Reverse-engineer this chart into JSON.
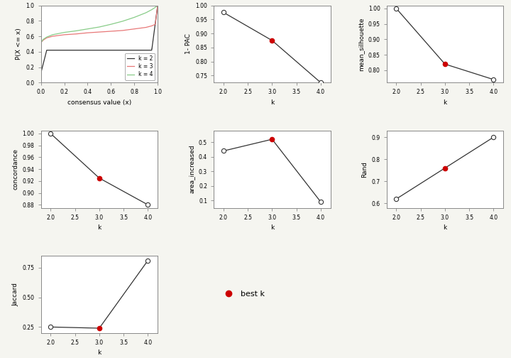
{
  "ecdf_k2": {
    "x": [
      0.0,
      0.0001,
      0.001,
      0.05,
      0.05,
      0.949,
      0.95,
      0.951,
      1.0
    ],
    "y": [
      0.0,
      0.0,
      0.13,
      0.42,
      0.42,
      0.42,
      0.44,
      0.44,
      1.0
    ],
    "color": "#333333",
    "label": "k = 2"
  },
  "ecdf_k3_x": [
    0.0,
    0.001,
    0.02,
    0.05,
    0.1,
    0.2,
    0.3,
    0.4,
    0.5,
    0.6,
    0.7,
    0.8,
    0.9,
    0.95,
    0.98,
    1.0
  ],
  "ecdf_k3_y": [
    0.0,
    0.52,
    0.55,
    0.58,
    0.6,
    0.62,
    0.63,
    0.645,
    0.655,
    0.665,
    0.675,
    0.695,
    0.715,
    0.735,
    0.755,
    1.0
  ],
  "ecdf_k3_color": "#e87878",
  "ecdf_k4_x": [
    0.0,
    0.001,
    0.02,
    0.05,
    0.1,
    0.2,
    0.3,
    0.4,
    0.5,
    0.6,
    0.7,
    0.8,
    0.9,
    0.95,
    0.98,
    1.0
  ],
  "ecdf_k4_y": [
    0.0,
    0.52,
    0.56,
    0.59,
    0.62,
    0.65,
    0.67,
    0.695,
    0.72,
    0.755,
    0.795,
    0.845,
    0.905,
    0.945,
    0.975,
    1.0
  ],
  "ecdf_k4_color": "#88cc88",
  "pac": {
    "k": [
      2,
      3,
      4
    ],
    "y": [
      0.975,
      0.875,
      0.725
    ],
    "best_k": 3,
    "ylabel": "1- PAC",
    "ylim": [
      0.725,
      1.0
    ],
    "yticks": [
      0.75,
      0.8,
      0.85,
      0.9,
      0.95,
      1.0
    ]
  },
  "silhouette": {
    "k": [
      2,
      3,
      4
    ],
    "y": [
      1.0,
      0.82,
      0.77
    ],
    "best_k": 3,
    "ylabel": "mean_silhouette",
    "ylim": [
      0.76,
      1.01
    ],
    "yticks": [
      0.8,
      0.85,
      0.9,
      0.95,
      1.0
    ]
  },
  "concordance": {
    "k": [
      2,
      3,
      4
    ],
    "y": [
      1.0,
      0.925,
      0.88
    ],
    "best_k": 3,
    "ylabel": "concordance",
    "ylim": [
      0.875,
      1.005
    ],
    "yticks": [
      0.88,
      0.9,
      0.92,
      0.94,
      0.96,
      0.98,
      1.0
    ]
  },
  "area_increased": {
    "k": [
      2,
      3,
      4
    ],
    "y": [
      0.44,
      0.52,
      0.09
    ],
    "best_k": 3,
    "ylabel": "area_increased",
    "ylim": [
      0.05,
      0.58
    ],
    "yticks": [
      0.1,
      0.2,
      0.3,
      0.4,
      0.5
    ]
  },
  "rand": {
    "k": [
      2,
      3,
      4
    ],
    "y": [
      0.62,
      0.76,
      0.9
    ],
    "best_k": 3,
    "ylabel": "Rand",
    "ylim": [
      0.58,
      0.93
    ],
    "yticks": [
      0.6,
      0.7,
      0.8,
      0.9
    ]
  },
  "jaccard": {
    "k": [
      2,
      3,
      4
    ],
    "y": [
      0.25,
      0.24,
      0.81
    ],
    "best_k": 3,
    "ylabel": "Jaccard",
    "ylim": [
      0.2,
      0.85
    ],
    "yticks": [
      0.25,
      0.5,
      0.75
    ]
  },
  "bg_color": "#f5f5f0",
  "panel_color": "#ffffff",
  "line_color": "#333333",
  "best_color": "#cc0000",
  "axis_color": "#888888"
}
